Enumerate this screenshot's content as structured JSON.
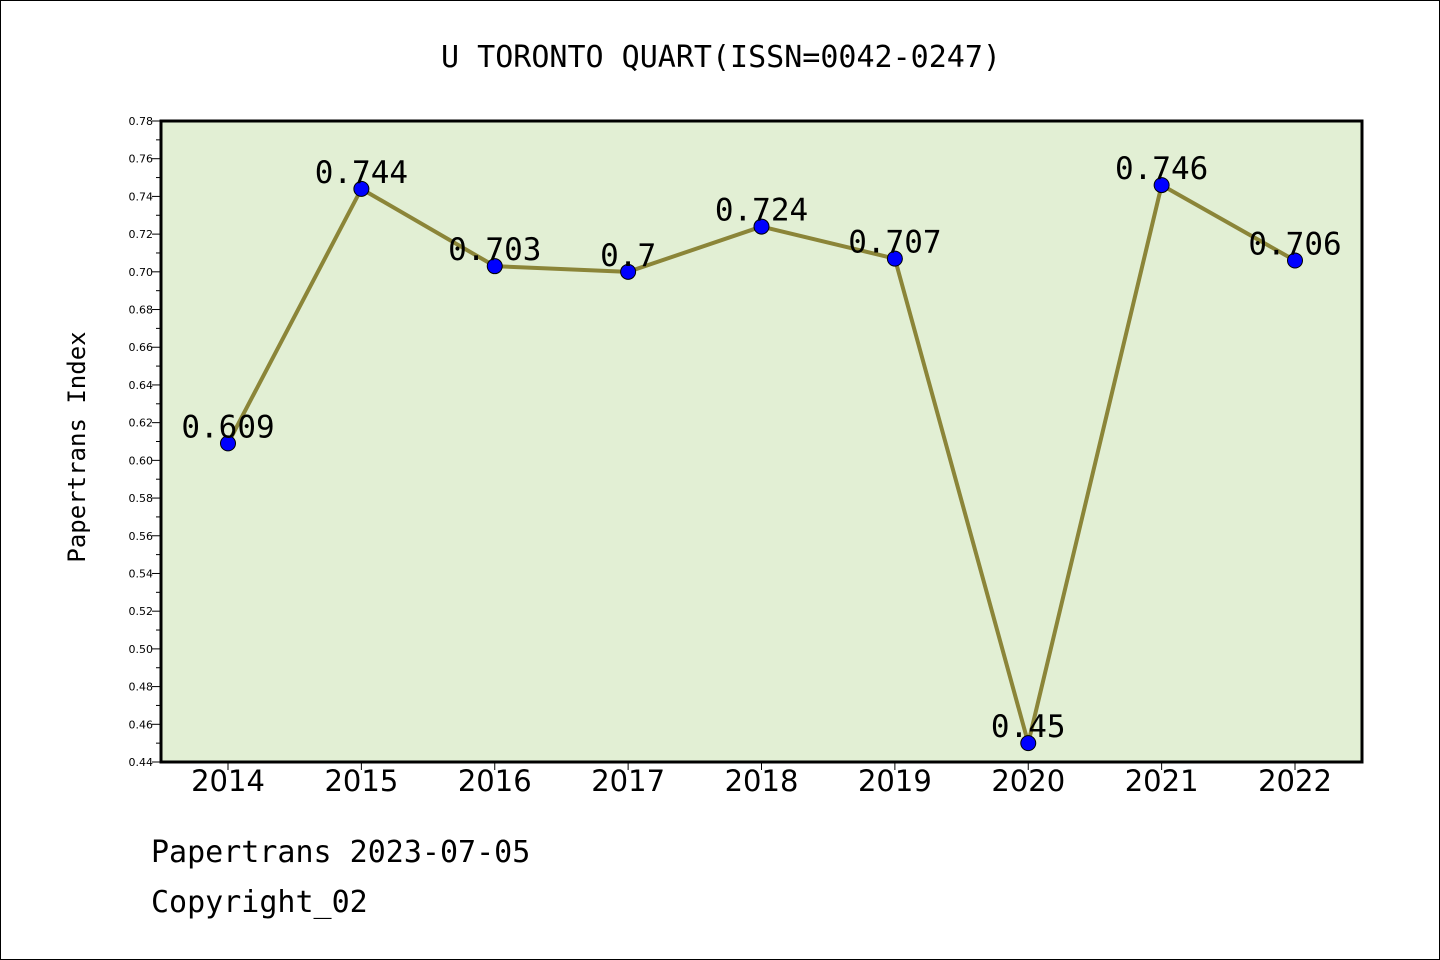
{
  "chart_data": {
    "type": "line",
    "title": "U TORONTO QUART(ISSN=0042-0247)",
    "ylabel": "Papertrans Index",
    "xlabel": "",
    "categories": [
      "2014",
      "2015",
      "2016",
      "2017",
      "2018",
      "2019",
      "2020",
      "2021",
      "2022"
    ],
    "values": [
      0.609,
      0.744,
      0.703,
      0.7,
      0.724,
      0.707,
      0.45,
      0.746,
      0.706
    ],
    "data_labels": [
      "0.609",
      "0.744",
      "0.703",
      "0.7",
      "0.724",
      "0.707",
      "0.45",
      "0.746",
      "0.706"
    ],
    "ylim": [
      0.44,
      0.78
    ],
    "y_ticks": [
      "0.44",
      "0.46",
      "0.48",
      "0.50",
      "0.52",
      "0.54",
      "0.56",
      "0.58",
      "0.60",
      "0.62",
      "0.64",
      "0.66",
      "0.68",
      "0.70",
      "0.72",
      "0.74",
      "0.76",
      "0.78"
    ],
    "grid": false,
    "legend": "none",
    "colors": {
      "plot_background": "#e2efd4",
      "line": "#8b8538",
      "marker": "#0000ff"
    }
  },
  "footer": {
    "source": "Papertrans 2023-07-05",
    "copyright": "Copyright_02"
  }
}
